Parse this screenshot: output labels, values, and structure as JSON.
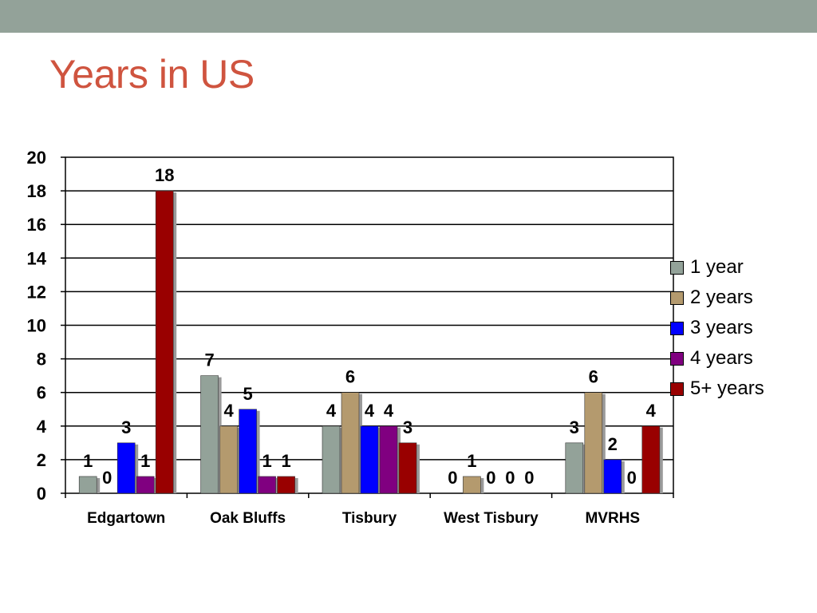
{
  "slide": {
    "title": "Years in US"
  },
  "chart_data": {
    "type": "bar",
    "categories": [
      "Edgartown",
      "Oak Bluffs",
      "Tisbury",
      "West Tisbury",
      "MVRHS"
    ],
    "series": [
      {
        "name": "1 year",
        "color": "#93a299",
        "values": [
          1,
          7,
          4,
          0,
          3
        ]
      },
      {
        "name": "2 years",
        "color": "#b49a6e",
        "values": [
          0,
          4,
          6,
          1,
          6
        ]
      },
      {
        "name": "3 years",
        "color": "#0000ff",
        "values": [
          3,
          5,
          4,
          0,
          2
        ]
      },
      {
        "name": "4 years",
        "color": "#800080",
        "values": [
          1,
          1,
          4,
          0,
          0
        ]
      },
      {
        "name": "5+ years",
        "color": "#990000",
        "values": [
          18,
          1,
          3,
          0,
          4
        ]
      }
    ],
    "ylim": [
      0,
      20
    ],
    "yticks": [
      0,
      2,
      4,
      6,
      8,
      10,
      12,
      14,
      16,
      18,
      20
    ],
    "grid": true,
    "legend_position": "right",
    "data_labels": true
  }
}
